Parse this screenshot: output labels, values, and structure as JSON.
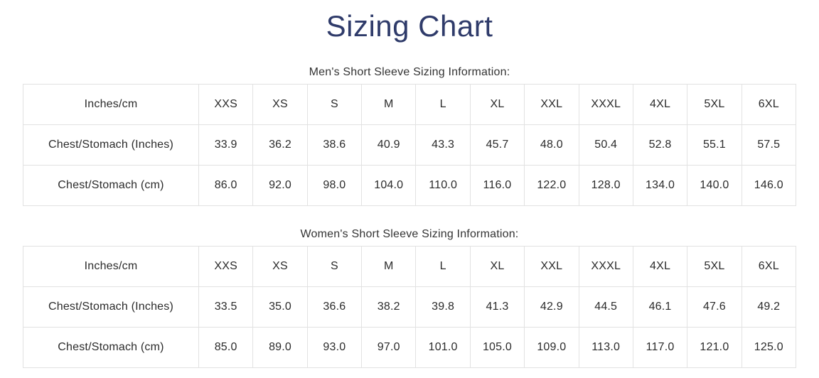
{
  "page": {
    "title": "Sizing Chart",
    "title_color": "#2f3b6a",
    "border_color": "#e2e2e2",
    "text_color": "#2b2b2b"
  },
  "tables": [
    {
      "caption": "Men's Short Sleeve Sizing Information:",
      "headers": [
        "Inches/cm",
        "XXS",
        "XS",
        "S",
        "M",
        "L",
        "XL",
        "XXL",
        "XXXL",
        "4XL",
        "5XL",
        "6XL"
      ],
      "rows": [
        {
          "label": "Chest/Stomach (Inches)",
          "values": [
            "33.9",
            "36.2",
            "38.6",
            "40.9",
            "43.3",
            "45.7",
            "48.0",
            "50.4",
            "52.8",
            "55.1",
            "57.5"
          ]
        },
        {
          "label": "Chest/Stomach (cm)",
          "values": [
            "86.0",
            "92.0",
            "98.0",
            "104.0",
            "110.0",
            "116.0",
            "122.0",
            "128.0",
            "134.0",
            "140.0",
            "146.0"
          ]
        }
      ]
    },
    {
      "caption": "Women's Short Sleeve Sizing Information:",
      "headers": [
        "Inches/cm",
        "XXS",
        "XS",
        "S",
        "M",
        "L",
        "XL",
        "XXL",
        "XXXL",
        "4XL",
        "5XL",
        "6XL"
      ],
      "rows": [
        {
          "label": "Chest/Stomach (Inches)",
          "values": [
            "33.5",
            "35.0",
            "36.6",
            "38.2",
            "39.8",
            "41.3",
            "42.9",
            "44.5",
            "46.1",
            "47.6",
            "49.2"
          ]
        },
        {
          "label": "Chest/Stomach (cm)",
          "values": [
            "85.0",
            "89.0",
            "93.0",
            "97.0",
            "101.0",
            "105.0",
            "109.0",
            "113.0",
            "117.0",
            "121.0",
            "125.0"
          ]
        }
      ]
    }
  ],
  "chart_data": [
    {
      "type": "table",
      "title": "Men's Short Sleeve Sizing Information:",
      "columns": [
        "Inches/cm",
        "XXS",
        "XS",
        "S",
        "M",
        "L",
        "XL",
        "XXL",
        "XXXL",
        "4XL",
        "5XL",
        "6XL"
      ],
      "rows": [
        [
          "Chest/Stomach (Inches)",
          33.9,
          36.2,
          38.6,
          40.9,
          43.3,
          45.7,
          48.0,
          50.4,
          52.8,
          55.1,
          57.5
        ],
        [
          "Chest/Stomach (cm)",
          86.0,
          92.0,
          98.0,
          104.0,
          110.0,
          116.0,
          122.0,
          128.0,
          134.0,
          140.0,
          146.0
        ]
      ]
    },
    {
      "type": "table",
      "title": "Women's Short Sleeve Sizing Information:",
      "columns": [
        "Inches/cm",
        "XXS",
        "XS",
        "S",
        "M",
        "L",
        "XL",
        "XXL",
        "XXXL",
        "4XL",
        "5XL",
        "6XL"
      ],
      "rows": [
        [
          "Chest/Stomach (Inches)",
          33.5,
          35.0,
          36.6,
          38.2,
          39.8,
          41.3,
          42.9,
          44.5,
          46.1,
          47.6,
          49.2
        ],
        [
          "Chest/Stomach (cm)",
          85.0,
          89.0,
          93.0,
          97.0,
          101.0,
          105.0,
          109.0,
          113.0,
          117.0,
          121.0,
          125.0
        ]
      ]
    }
  ]
}
